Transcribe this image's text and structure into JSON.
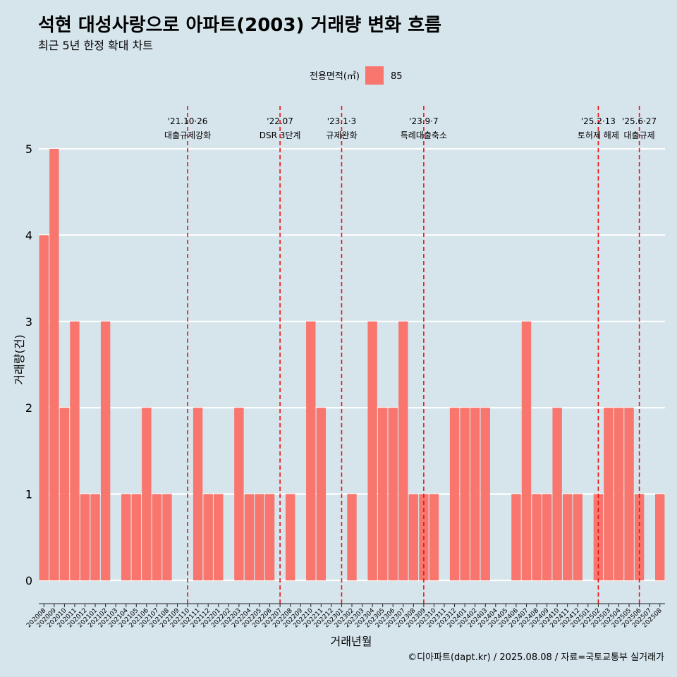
{
  "title": "석현 대성사랑으로 아파트(2003) 거래량 변화 흐름",
  "subtitle": "최근 5년 한정 확대 차트",
  "caption": "©디아파트(dapt.kr) / 2025.08.08 / 자료=국토교통부 실거래가",
  "colors": {
    "background": "#d6e4ec",
    "bar": "#f8766d",
    "grid": "#ffffff",
    "annotation": "#ee1111"
  },
  "chart_data": {
    "type": "bar",
    "xlabel": "거래년월",
    "ylabel": "거래량(건)",
    "ylim": [
      0,
      5
    ],
    "yticks": [
      0,
      1,
      2,
      3,
      4,
      5
    ],
    "legend": {
      "title": "전용면적(㎡)",
      "placement": "top",
      "entries": [
        "85"
      ]
    },
    "categories": [
      "202008",
      "202009",
      "202010",
      "202011",
      "202012",
      "202101",
      "202102",
      "202103",
      "202104",
      "202105",
      "202106",
      "202107",
      "202108",
      "202109",
      "202110",
      "202111",
      "202112",
      "202201",
      "202202",
      "202203",
      "202204",
      "202205",
      "202206",
      "202207",
      "202208",
      "202209",
      "202210",
      "202211",
      "202212",
      "202301",
      "202302",
      "202303",
      "202304",
      "202305",
      "202306",
      "202307",
      "202308",
      "202309",
      "202310",
      "202311",
      "202312",
      "202401",
      "202402",
      "202403",
      "202404",
      "202405",
      "202406",
      "202407",
      "202408",
      "202409",
      "202410",
      "202411",
      "202412",
      "202501",
      "202502",
      "202503",
      "202504",
      "202505",
      "202506",
      "202507",
      "202508"
    ],
    "series": [
      {
        "name": "85",
        "values": [
          4,
          5,
          2,
          3,
          1,
          1,
          3,
          0,
          1,
          1,
          2,
          1,
          1,
          0,
          0,
          2,
          1,
          1,
          0,
          2,
          1,
          1,
          1,
          0,
          1,
          0,
          3,
          2,
          0,
          0,
          1,
          0,
          3,
          2,
          2,
          3,
          1,
          1,
          1,
          0,
          2,
          2,
          2,
          2,
          0,
          0,
          1,
          3,
          1,
          1,
          2,
          1,
          1,
          0,
          1,
          2,
          2,
          2,
          1,
          0,
          1
        ]
      }
    ],
    "annotations": [
      {
        "x": "202110",
        "date": "'21.10·26",
        "label": "대출규제강화"
      },
      {
        "x": "202207",
        "date": "'22.07",
        "label": "DSR 3단계"
      },
      {
        "x": "202301",
        "date": "'23.1·3",
        "label": "규제완화"
      },
      {
        "x": "202309",
        "date": "'23.9·7",
        "label": "특례대출축소"
      },
      {
        "x": "202502",
        "date": "'25.2·13",
        "label": "토허제 해제"
      },
      {
        "x": "202506",
        "date": "'25.6·27",
        "label": "대출규제"
      }
    ]
  }
}
